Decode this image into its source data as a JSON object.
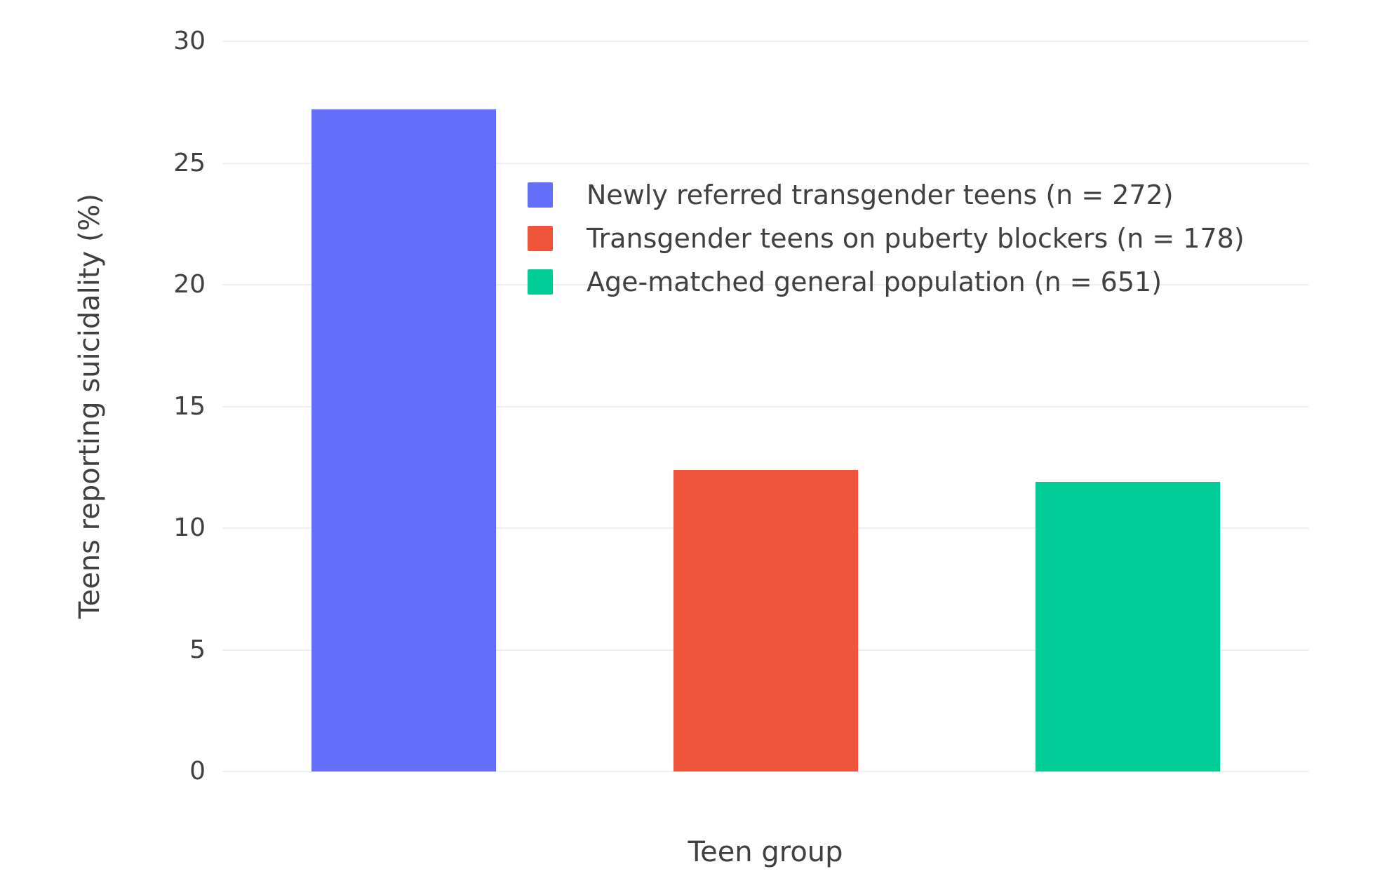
{
  "chart_data": {
    "type": "bar",
    "title": "",
    "xlabel": "Teen group",
    "ylabel": "Teens reporting suicidality (%)",
    "ylim": [
      0,
      30
    ],
    "yticks": [
      0,
      5,
      10,
      15,
      20,
      25,
      30
    ],
    "grid": true,
    "legend_position": "inside-top-center",
    "background_color": "#ffffff",
    "gridline_color": "#ebf0f8",
    "text_color": "#404040",
    "categories": [
      "Newly referred transgender teens (n = 272)",
      "Transgender teens on puberty blockers (n = 178)",
      "Age-matched general population (n = 651)"
    ],
    "series": [
      {
        "name": "Newly referred transgender teens (n = 272)",
        "value": 27.2,
        "color": "#636EFA"
      },
      {
        "name": "Transgender teens on puberty blockers (n = 178)",
        "value": 12.4,
        "color": "#EF553B"
      },
      {
        "name": "Age-matched general population (n = 651)",
        "value": 11.9,
        "color": "#00CC96"
      }
    ]
  }
}
